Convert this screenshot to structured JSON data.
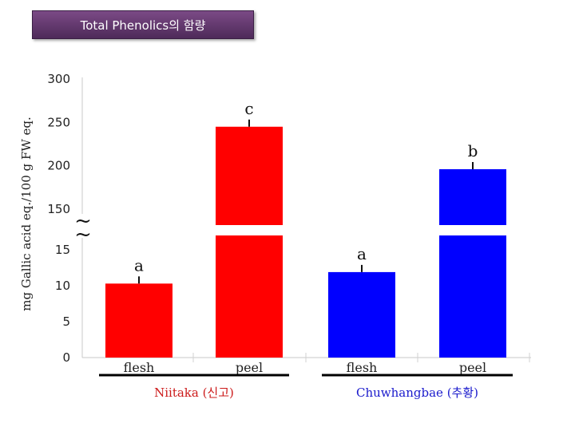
{
  "chart_data": {
    "type": "bar",
    "title": "Total Phenolics의 함량",
    "ylabel": "mg Gallic acid eq./100 g FW eq.",
    "y_ticks_lower": [
      "0",
      "5",
      "10",
      "15"
    ],
    "y_ticks_upper": [
      "150",
      "200",
      "250",
      "300"
    ],
    "axis_break": "~",
    "lower_ylim": [
      0,
      15
    ],
    "upper_ylim": [
      150,
      300
    ],
    "categories": [
      "flesh",
      "peel",
      "flesh",
      "peel"
    ],
    "groups": [
      {
        "name": "Niitaka (신고)",
        "color": "#cc1a1a",
        "categories": [
          "flesh",
          "peel"
        ]
      },
      {
        "name": "Chuwhangbae (추황)",
        "color": "#1a1acc",
        "categories": [
          "flesh",
          "peel"
        ]
      }
    ],
    "values": [
      10.3,
      245,
      11.9,
      196
    ],
    "significance": [
      "a",
      "c",
      "a",
      "b"
    ],
    "bar_colors": [
      "#ff0000",
      "#ff0000",
      "#0000ff",
      "#0000ff"
    ],
    "grid": false
  }
}
